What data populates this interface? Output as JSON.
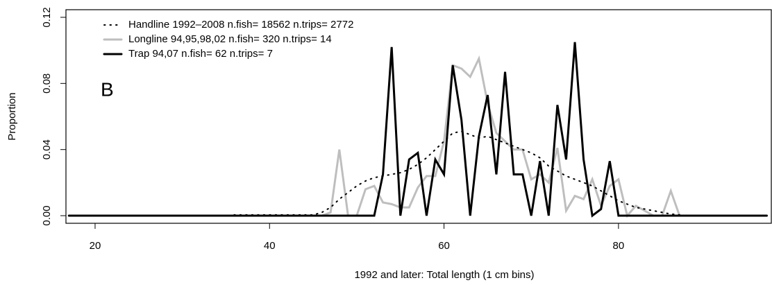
{
  "chart_data": {
    "type": "line",
    "annotation": "B",
    "xlabel": "1992 and later:  Total length (1 cm bins)",
    "ylabel": "Proportion",
    "legend": "top-left",
    "xlim": [
      16.66,
      97.52
    ],
    "ylim": [
      -0.0046,
      0.1246
    ],
    "xticks": [
      20,
      40,
      60,
      80
    ],
    "yticks": [
      {
        "value": 0,
        "label": "0.00"
      },
      {
        "value": 0.04,
        "label": "0.04"
      },
      {
        "value": 0.08,
        "label": "0.08"
      },
      {
        "value": 0.12,
        "label": "0.12"
      }
    ],
    "x": [
      17,
      18,
      19,
      20,
      21,
      22,
      23,
      24,
      25,
      26,
      27,
      28,
      29,
      30,
      31,
      32,
      33,
      34,
      35,
      36,
      37,
      38,
      39,
      40,
      41,
      42,
      43,
      44,
      45,
      46,
      47,
      48,
      49,
      50,
      51,
      52,
      53,
      54,
      55,
      56,
      57,
      58,
      59,
      60,
      61,
      62,
      63,
      64,
      65,
      66,
      67,
      68,
      69,
      70,
      71,
      72,
      73,
      74,
      75,
      76,
      77,
      78,
      79,
      80,
      81,
      82,
      83,
      84,
      85,
      86,
      87,
      88,
      89,
      90,
      91,
      92,
      93,
      94,
      95,
      96,
      97
    ],
    "series": [
      {
        "name": "Handline 1992–2008 n.fish= 18562 n.trips= 2772",
        "color": "#000000",
        "linestyle": "dotted",
        "linewidth": 2,
        "values": [
          0,
          0,
          0,
          0,
          0,
          0,
          0,
          0,
          0,
          0,
          0,
          0,
          0,
          0,
          0,
          0,
          0,
          0,
          0,
          0.0005,
          0.0005,
          0.0005,
          0.0005,
          0.0005,
          0.0005,
          0.0005,
          0.0005,
          0.0005,
          0.0005,
          0.002,
          0.005,
          0.01,
          0.014,
          0.018,
          0.021,
          0.023,
          0.024,
          0.025,
          0.026,
          0.028,
          0.031,
          0.035,
          0.04,
          0.045,
          0.05,
          0.051,
          0.049,
          0.047,
          0.048,
          0.046,
          0.044,
          0.042,
          0.04,
          0.038,
          0.035,
          0.03,
          0.027,
          0.024,
          0.022,
          0.02,
          0.018,
          0.015,
          0.012,
          0.009,
          0.007,
          0.005,
          0.004,
          0.003,
          0.002,
          0.001,
          0.0005,
          0,
          0,
          0,
          0,
          0,
          0,
          0,
          0,
          0,
          0
        ]
      },
      {
        "name": "Longline 94,95,98,02 n.fish= 320 n.trips= 14",
        "color": "#bebebe",
        "linestyle": "solid",
        "linewidth": 3,
        "values": [
          0,
          0,
          0,
          0,
          0,
          0,
          0,
          0,
          0,
          0,
          0,
          0,
          0,
          0,
          0,
          0,
          0,
          0,
          0,
          0,
          0,
          0,
          0,
          0,
          0,
          0,
          0,
          0,
          0,
          0,
          0.002,
          0.04,
          0,
          0,
          0.016,
          0.018,
          0.008,
          0.007,
          0.005,
          0.005,
          0.017,
          0.024,
          0.024,
          0.045,
          0.091,
          0.089,
          0.084,
          0.095,
          0.068,
          0.05,
          0.045,
          0.04,
          0.04,
          0.022,
          0.025,
          0.02,
          0.041,
          0.003,
          0.012,
          0.01,
          0.022,
          0.006,
          0.018,
          0.022,
          0,
          0.006,
          0.003,
          0,
          0,
          0.015,
          0,
          0,
          0,
          0,
          0,
          0,
          0,
          0,
          0,
          0,
          0
        ]
      },
      {
        "name": "Trap 94,07 n.fish= 62 n.trips= 7",
        "color": "#000000",
        "linestyle": "solid",
        "linewidth": 3,
        "values": [
          0,
          0,
          0,
          0,
          0,
          0,
          0,
          0,
          0,
          0,
          0,
          0,
          0,
          0,
          0,
          0,
          0,
          0,
          0,
          0,
          0,
          0,
          0,
          0,
          0,
          0,
          0,
          0,
          0,
          0,
          0,
          0,
          0,
          0,
          0,
          0,
          0.025,
          0.102,
          0,
          0.034,
          0.038,
          0,
          0.034,
          0.025,
          0.091,
          0.058,
          0,
          0.048,
          0.073,
          0.025,
          0.087,
          0.025,
          0.025,
          0,
          0.033,
          0,
          0.067,
          0.034,
          0.105,
          0.034,
          0,
          0.004,
          0.033,
          0,
          0,
          0,
          0,
          0,
          0,
          0,
          0,
          0,
          0,
          0,
          0,
          0,
          0,
          0,
          0,
          0,
          0
        ]
      }
    ]
  }
}
